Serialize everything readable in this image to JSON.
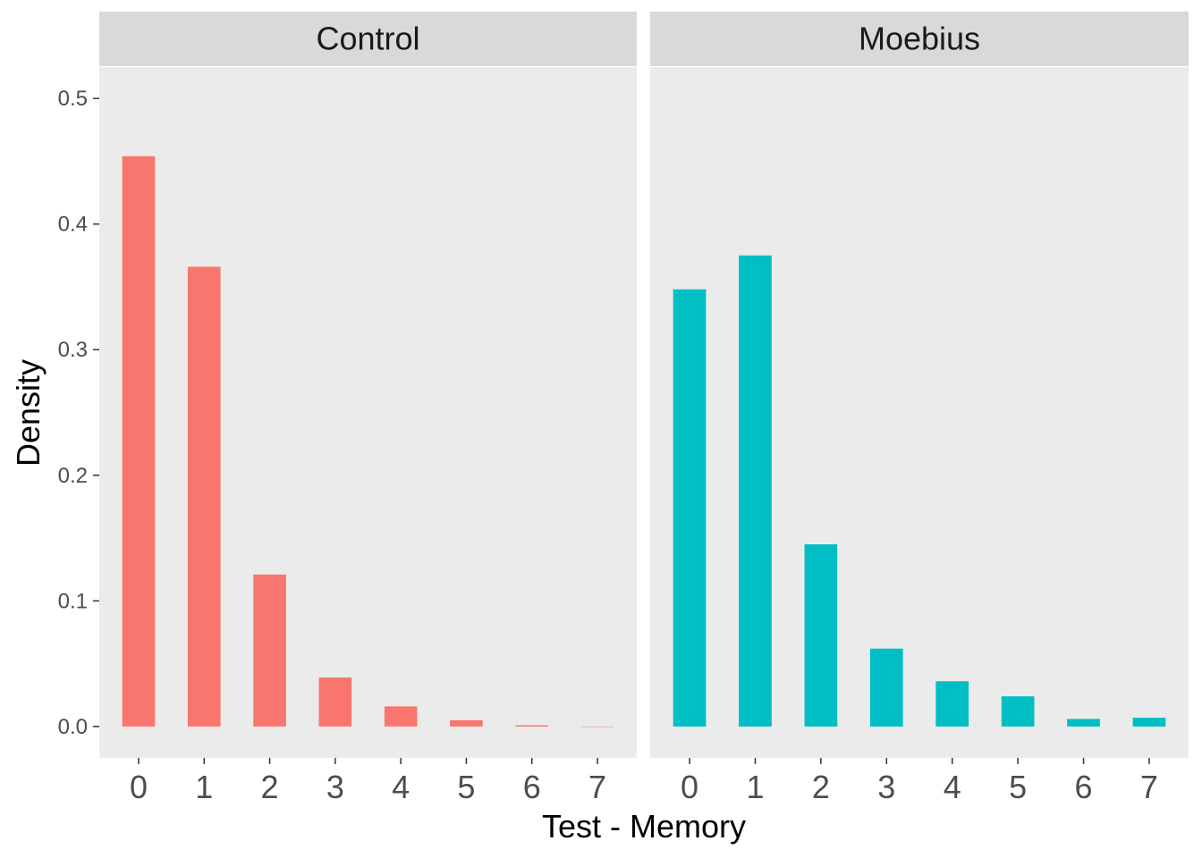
{
  "chart_data": {
    "type": "bar",
    "xlabel": "Test - Memory",
    "ylabel": "Density",
    "ylim": [
      -0.025,
      0.525
    ],
    "yticks": [
      0.0,
      0.1,
      0.2,
      0.3,
      0.4,
      0.5
    ],
    "ytick_labels": [
      "0.0",
      "0.1",
      "0.2",
      "0.3",
      "0.4",
      "0.5"
    ],
    "categories": [
      "0",
      "1",
      "2",
      "3",
      "4",
      "5",
      "6",
      "7"
    ],
    "grid": false,
    "legend": "none",
    "panel_background": "#ebebeb",
    "strip_background": "#d9d9d9",
    "panels": [
      {
        "name": "Control",
        "color": "#F8766D",
        "values": [
          0.454,
          0.366,
          0.121,
          0.039,
          0.016,
          0.005,
          0.001,
          0.0
        ]
      },
      {
        "name": "Moebius",
        "color": "#00BFC4",
        "values": [
          0.348,
          0.375,
          0.145,
          0.062,
          0.036,
          0.024,
          0.006,
          0.007
        ]
      }
    ]
  }
}
